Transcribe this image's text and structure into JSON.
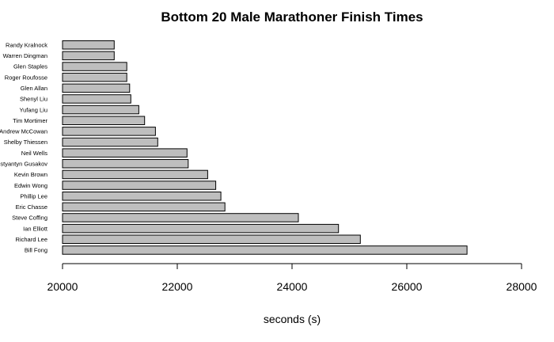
{
  "chart_data": {
    "type": "bar",
    "orientation": "horizontal",
    "title": "Bottom 20 Male Marathoner Finish Times",
    "xlabel": "seconds (s)",
    "ylabel": "",
    "xlim": [
      20000,
      28000
    ],
    "xticks": [
      20000,
      22000,
      24000,
      26000,
      28000
    ],
    "grid": false,
    "bar_color": "#bebebe",
    "categories": [
      "Randy Kralnock",
      "Warren Dingman",
      "Glen Staples",
      "Roger Roufosse",
      "Glen Allan",
      "Shenyl Liu",
      "Yufang Liu",
      "Tim Mortimer",
      "Andrew McCowan",
      "Shelby Thiessen",
      "Neil Wells",
      "Konstyantyn Gusakov",
      "Kevin Brown",
      "Edwin Wong",
      "Phillip Lee",
      "Eric Chasse",
      "Steve Coffing",
      "Ian Elliott",
      "Richard Lee",
      "Bill Fong"
    ],
    "values": [
      20900,
      20900,
      21120,
      21120,
      21170,
      21190,
      21330,
      21430,
      21620,
      21660,
      22170,
      22190,
      22530,
      22670,
      22760,
      22830,
      24110,
      24810,
      25190,
      27050
    ]
  }
}
